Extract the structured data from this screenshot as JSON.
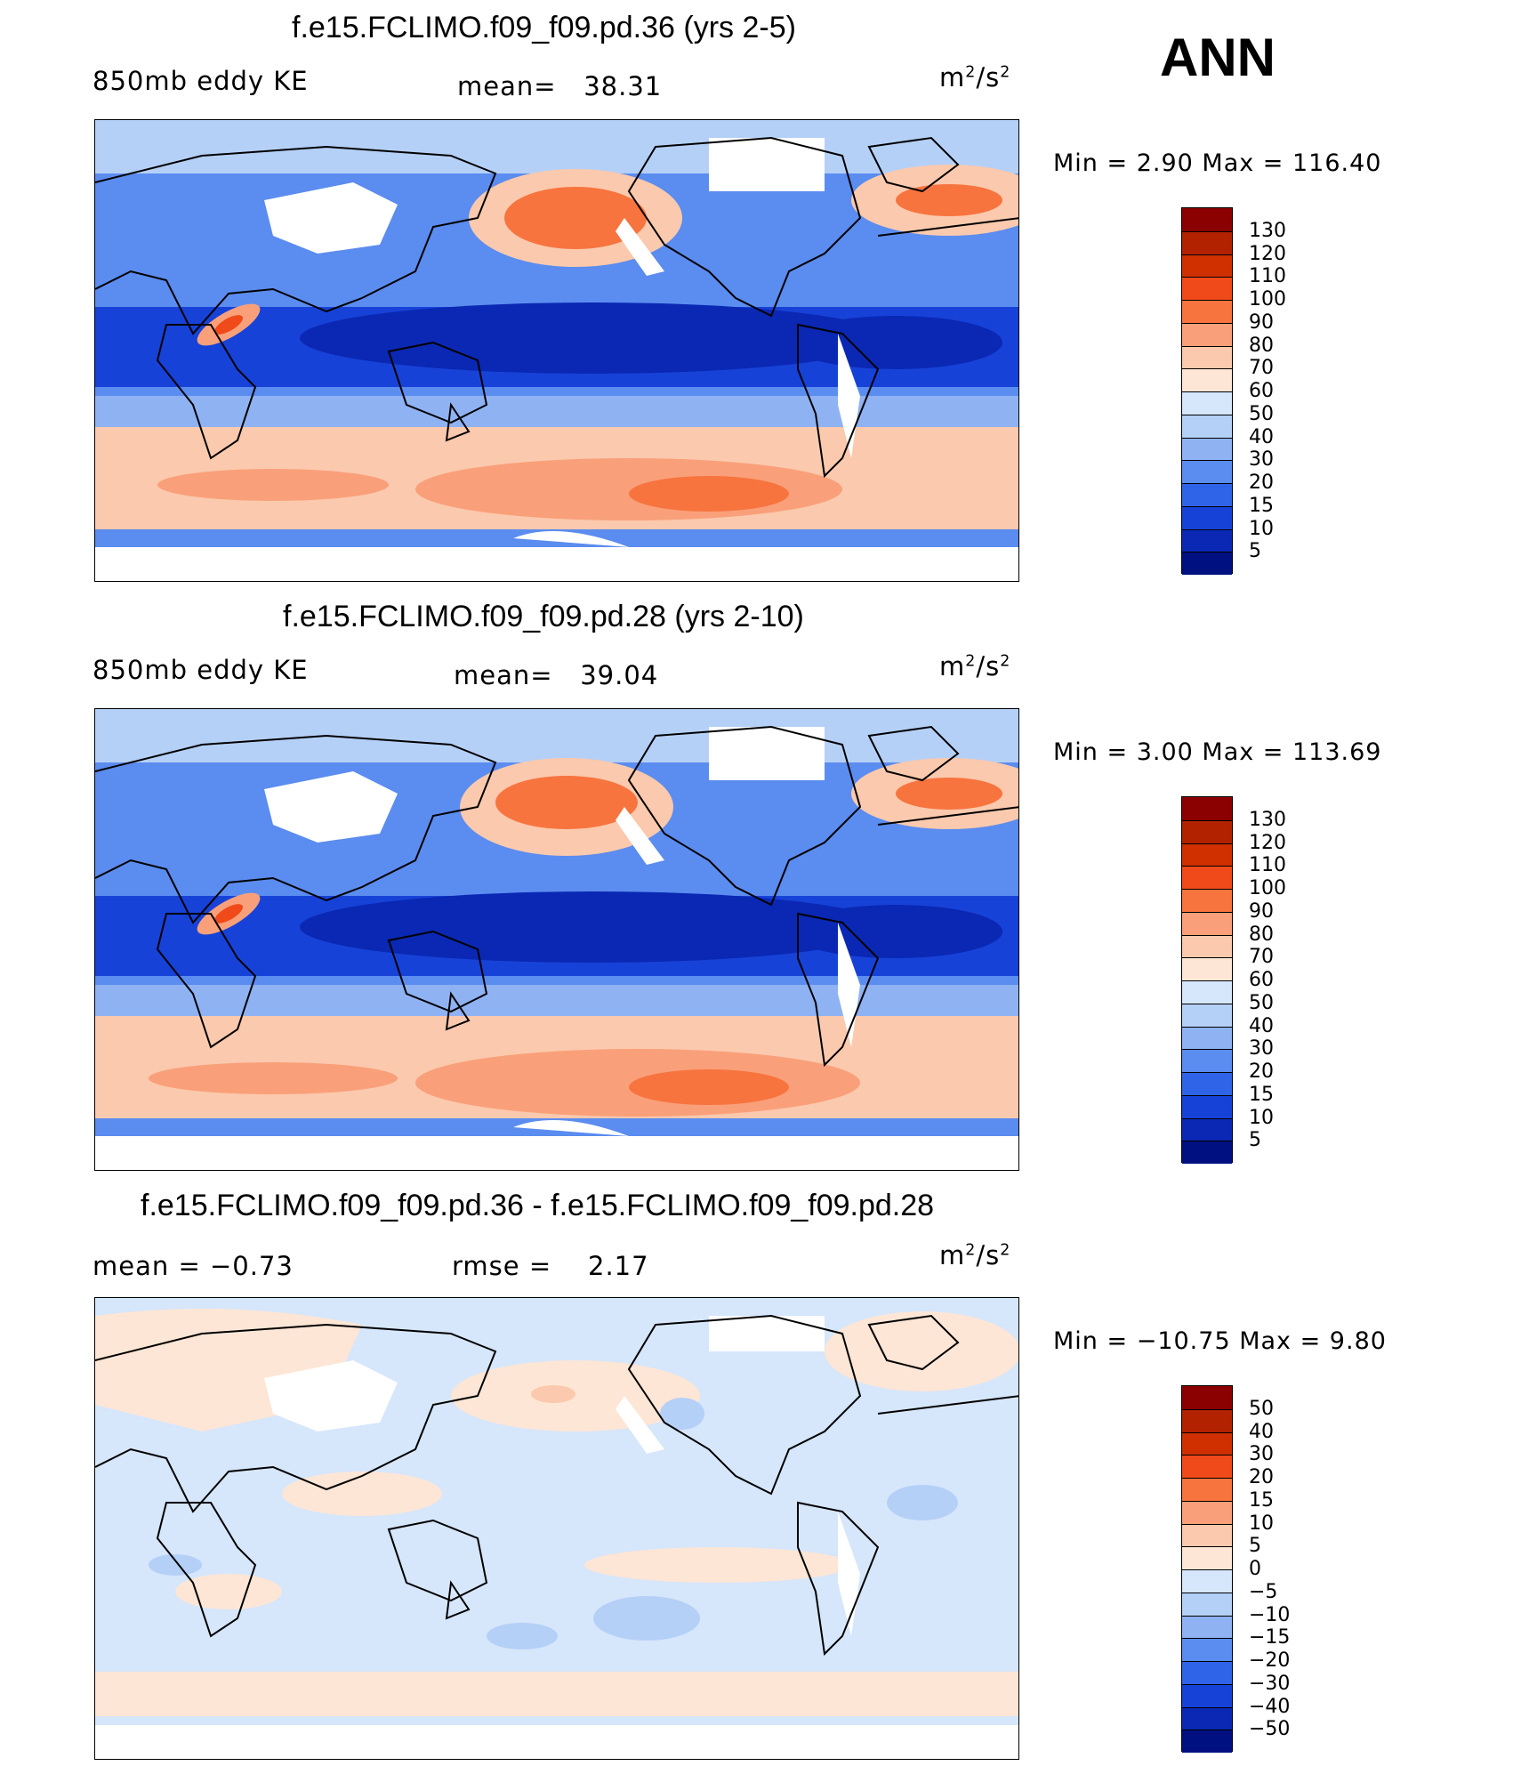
{
  "season": "ANN",
  "panels": [
    {
      "title": "f.e15.FCLIMO.f09_f09.pd.36 (yrs 2-5)",
      "left_label": "850mb  eddy  KE",
      "center_label": "mean=",
      "center_value": "38.31",
      "units_base": "m",
      "units_exp1": "2",
      "units_mid": "/s",
      "units_exp2": "2",
      "minmax": "Min  =     2.90  Max  =  116.40",
      "kind": "field",
      "colorbar": {
        "colors": [
          "#8b0000",
          "#b22200",
          "#d03000",
          "#f04a1a",
          "#f7743f",
          "#f9a07a",
          "#fbc9ad",
          "#fde6d6",
          "#d6e6fb",
          "#b5d0f7",
          "#8fb2f3",
          "#5b8cef",
          "#2f63e8",
          "#1742d8",
          "#0a28b3",
          "#001080"
        ],
        "labels": [
          "130",
          "120",
          "110",
          "100",
          "90",
          "80",
          "70",
          "60",
          "50",
          "40",
          "30",
          "20",
          "15",
          "10",
          "5"
        ]
      }
    },
    {
      "title": "f.e15.FCLIMO.f09_f09.pd.28 (yrs 2-10)",
      "left_label": "850mb  eddy  KE",
      "center_label": "mean=",
      "center_value": "39.04",
      "units_base": "m",
      "units_exp1": "2",
      "units_mid": "/s",
      "units_exp2": "2",
      "minmax": "Min  =     3.00  Max  =  113.69",
      "kind": "field",
      "colorbar": {
        "colors": [
          "#8b0000",
          "#b22200",
          "#d03000",
          "#f04a1a",
          "#f7743f",
          "#f9a07a",
          "#fbc9ad",
          "#fde6d6",
          "#d6e6fb",
          "#b5d0f7",
          "#8fb2f3",
          "#5b8cef",
          "#2f63e8",
          "#1742d8",
          "#0a28b3",
          "#001080"
        ],
        "labels": [
          "130",
          "120",
          "110",
          "100",
          "90",
          "80",
          "70",
          "60",
          "50",
          "40",
          "30",
          "20",
          "15",
          "10",
          "5"
        ]
      }
    },
    {
      "title": "f.e15.FCLIMO.f09_f09.pd.36 - f.e15.FCLIMO.f09_f09.pd.28",
      "left_label": "mean  =     −0.73",
      "center_label": "rmse  =",
      "center_value": "2.17",
      "units_base": "m",
      "units_exp1": "2",
      "units_mid": "/s",
      "units_exp2": "2",
      "minmax": "Min  =  −10.75  Max  =       9.80",
      "kind": "diff",
      "colorbar": {
        "colors": [
          "#8b0000",
          "#b22200",
          "#d03000",
          "#f04a1a",
          "#f7743f",
          "#f9a07a",
          "#fbc9ad",
          "#fde6d6",
          "#d6e6fb",
          "#b5d0f7",
          "#8fb2f3",
          "#5b8cef",
          "#2f63e8",
          "#1742d8",
          "#0a28b3",
          "#001080"
        ],
        "labels": [
          "50",
          "40",
          "30",
          "20",
          "15",
          "10",
          "5",
          "0",
          "−5",
          "−10",
          "−15",
          "−20",
          "−30",
          "−40",
          "−50"
        ]
      }
    }
  ]
}
